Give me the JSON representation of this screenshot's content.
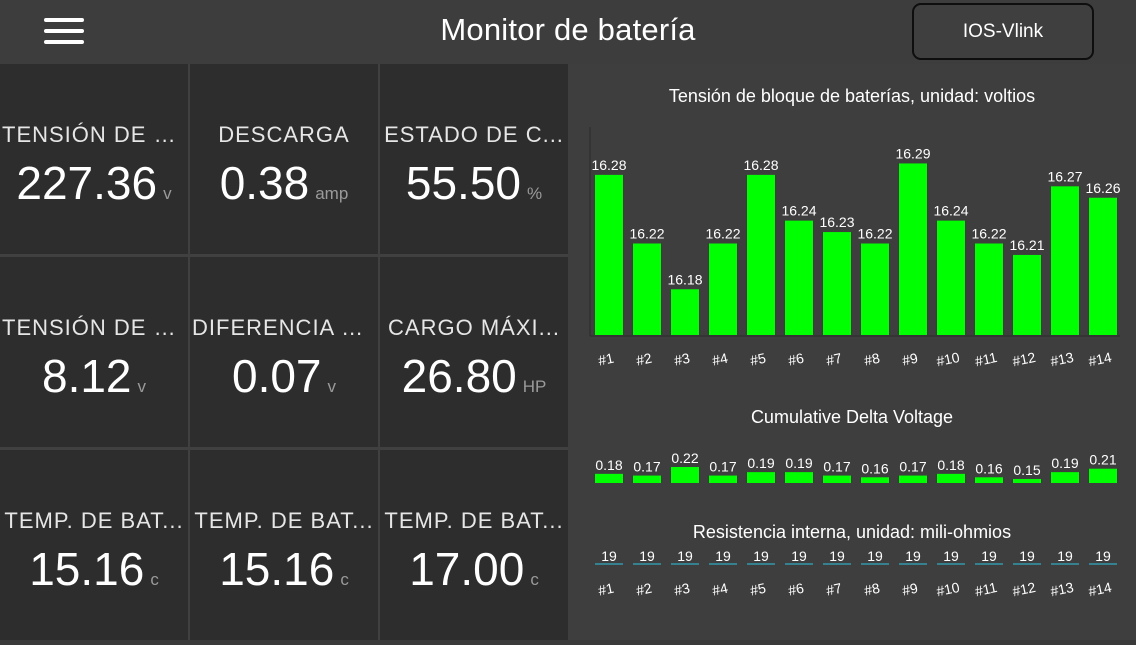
{
  "header": {
    "title": "Monitor de batería",
    "device_button": "IOS-Vlink",
    "menu_icon": "hamburger-menu-icon"
  },
  "tiles": [
    {
      "label": "TENSIÓN DE P...",
      "value": "227.36",
      "unit": "v"
    },
    {
      "label": "DESCARGA",
      "value": "0.38",
      "unit": "amp"
    },
    {
      "label": "ESTADO DE C...",
      "value": "55.50",
      "unit": "%"
    },
    {
      "label": "TENSIÓN DE C...",
      "value": "8.12",
      "unit": "v"
    },
    {
      "label": "DIFERENCIA D...",
      "value": "0.07",
      "unit": "v"
    },
    {
      "label": "CARGO MÁXI...",
      "value": "26.80",
      "unit": "HP"
    },
    {
      "label": "TEMP. DE BAT...",
      "value": "15.16",
      "unit": "c"
    },
    {
      "label": "TEMP. DE BAT...",
      "value": "15.16",
      "unit": "c"
    },
    {
      "label": "TEMP. DE BAT...",
      "value": "17.00",
      "unit": "c"
    }
  ],
  "colors": {
    "bar": "#00ff00",
    "line": "#2fc4e0",
    "tile_bg": "#2d2d2d",
    "panel_bg": "#3e3e3e"
  },
  "chart_data": [
    {
      "type": "bar",
      "title": "Tensión de bloque de baterías, unidad: voltios",
      "categories": [
        "#1",
        "#2",
        "#3",
        "#4",
        "#5",
        "#6",
        "#7",
        "#8",
        "#9",
        "#10",
        "#11",
        "#12",
        "#13",
        "#14"
      ],
      "values": [
        16.28,
        16.22,
        16.18,
        16.22,
        16.28,
        16.24,
        16.23,
        16.22,
        16.29,
        16.24,
        16.22,
        16.21,
        16.27,
        16.26
      ],
      "value_labels": [
        "16.28",
        "16.22",
        "16.18",
        "16.22",
        "16.28",
        "16.24",
        "16.23",
        "16.22",
        "16.29",
        "16.24",
        "16.22",
        "16.21",
        "16.27",
        "16.26"
      ]
    },
    {
      "type": "bar",
      "title": "Cumulative Delta Voltage",
      "categories": [
        "#1",
        "#2",
        "#3",
        "#4",
        "#5",
        "#6",
        "#7",
        "#8",
        "#9",
        "#10",
        "#11",
        "#12",
        "#13",
        "#14"
      ],
      "values": [
        0.18,
        0.17,
        0.22,
        0.17,
        0.19,
        0.19,
        0.17,
        0.16,
        0.17,
        0.18,
        0.16,
        0.15,
        0.19,
        0.21
      ],
      "value_labels": [
        "0.18",
        "0.17",
        "0.22",
        "0.17",
        "0.19",
        "0.19",
        "0.17",
        "0.16",
        "0.17",
        "0.18",
        "0.16",
        "0.15",
        "0.19",
        "0.21"
      ]
    },
    {
      "type": "bar",
      "title": "Resistencia interna, unidad: mili-ohmios",
      "categories": [
        "#1",
        "#2",
        "#3",
        "#4",
        "#5",
        "#6",
        "#7",
        "#8",
        "#9",
        "#10",
        "#11",
        "#12",
        "#13",
        "#14"
      ],
      "values": [
        19,
        19,
        19,
        19,
        19,
        19,
        19,
        19,
        19,
        19,
        19,
        19,
        19,
        19
      ],
      "value_labels": [
        "19",
        "19",
        "19",
        "19",
        "19",
        "19",
        "19",
        "19",
        "19",
        "19",
        "19",
        "19",
        "19",
        "19"
      ]
    }
  ]
}
